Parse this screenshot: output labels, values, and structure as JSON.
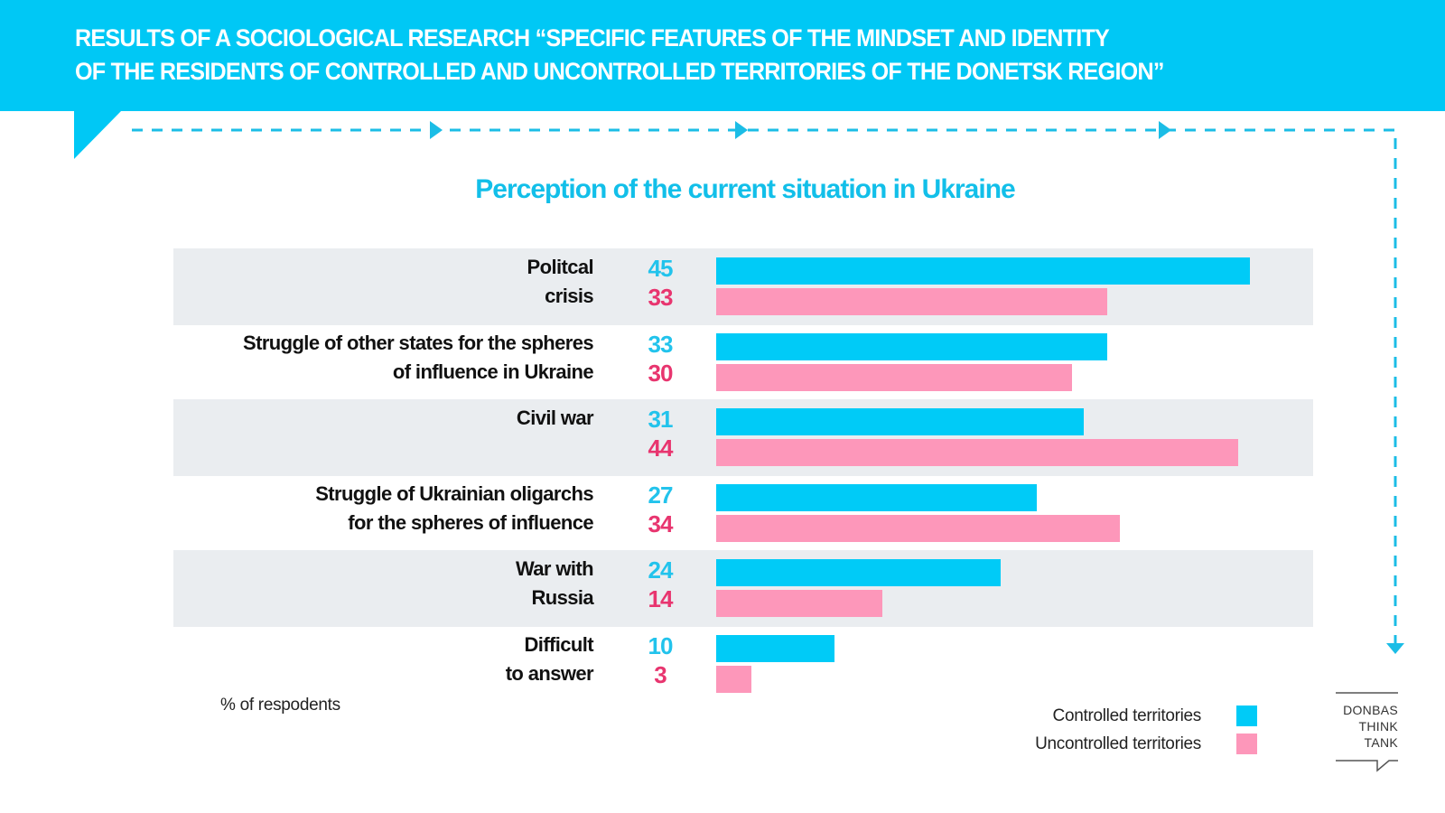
{
  "header": {
    "title_line1": "RESULTS OF A SOCIOLOGICAL RESEARCH “SPECIFIC FEATURES OF THE MINDSET AND IDENTITY",
    "title_line2": "OF THE RESIDENTS OF CONTROLLED AND UNCONTROLLED TERRITORIES OF THE DONETSK REGION”"
  },
  "colors": {
    "accent": "#00c8f5",
    "controlled": "#00cbf7",
    "uncontrolled": "#fd97ba",
    "controlled_text": "#22c3ec",
    "uncontrolled_text": "#e8356f",
    "band": "#eaedf0"
  },
  "chart_data": {
    "type": "bar",
    "orientation": "horizontal",
    "title": "Perception of the current situation in Ukraine",
    "xlabel": "",
    "ylabel": "",
    "unit_note": "% of respodents",
    "categories": [
      [
        "Politcal",
        "crisis"
      ],
      [
        "Struggle of other states for the spheres",
        "of influence in Ukraine"
      ],
      [
        "Civil war"
      ],
      [
        "Struggle of Ukrainian oligarchs",
        "for the spheres of influence"
      ],
      [
        "War with",
        "Russia"
      ],
      [
        "Difficult",
        "to answer"
      ]
    ],
    "series": [
      {
        "name": "Controlled territories",
        "color": "#00cbf7",
        "values": [
          45,
          33,
          31,
          27,
          24,
          10
        ]
      },
      {
        "name": "Uncontrolled territories",
        "color": "#fd97ba",
        "values": [
          33,
          30,
          44,
          34,
          14,
          3
        ]
      }
    ],
    "xlim": [
      0,
      45
    ],
    "grid": false,
    "legend": "bottom-right"
  },
  "legend": {
    "items": [
      {
        "label": "Controlled territories",
        "color": "#00cbf7"
      },
      {
        "label": "Uncontrolled territories",
        "color": "#fd97ba"
      }
    ]
  },
  "footnote": "% of respodents",
  "logo": {
    "lines": [
      "DONBAS",
      "THINK",
      "TANK"
    ]
  },
  "icons": [
    "speech-bubble-tail",
    "dashed-arrow-right",
    "dashed-arrow-down",
    "logo-speech-bubble"
  ]
}
